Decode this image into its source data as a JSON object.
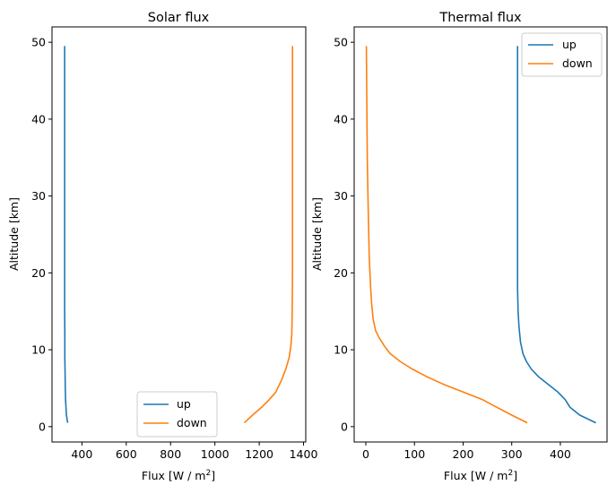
{
  "chart_data": [
    {
      "type": "line",
      "title": "Solar flux",
      "xlabel": "Flux [W / m",
      "xlabel_sup": "2",
      "xlabel_tail": "]",
      "ylabel": "Altitude [km]",
      "xlim": [
        265,
        1410
      ],
      "ylim": [
        -2,
        52
      ],
      "xticks": [
        400,
        600,
        800,
        1000,
        1200,
        1400
      ],
      "yticks": [
        0,
        10,
        20,
        30,
        40,
        50
      ],
      "legend_position": "lower center",
      "series": [
        {
          "name": "up",
          "color": "#1f77b4",
          "x": [
            336,
            333,
            330,
            328,
            326,
            325,
            324,
            323,
            323,
            322,
            322,
            322,
            322,
            322,
            322,
            322,
            322
          ],
          "y": [
            0.5,
            1,
            1.5,
            2.5,
            3.5,
            5,
            7,
            9,
            12,
            15,
            20,
            25,
            30,
            35,
            40,
            45,
            49.5
          ]
        },
        {
          "name": "down",
          "color": "#ff7f0e",
          "x": [
            1133,
            1170,
            1210,
            1245,
            1275,
            1300,
            1320,
            1335,
            1343,
            1347,
            1349,
            1350,
            1350,
            1350,
            1350,
            1350
          ],
          "y": [
            0.5,
            1.5,
            2.5,
            3.5,
            4.5,
            6,
            7.5,
            9,
            10.5,
            12,
            15,
            20,
            25,
            30,
            40,
            49.5
          ]
        }
      ]
    },
    {
      "type": "line",
      "title": "Thermal flux",
      "xlabel": "Flux [W / m",
      "xlabel_sup": "2",
      "xlabel_tail": "]",
      "ylabel": "Altitude [km]",
      "xlim": [
        -24,
        496
      ],
      "ylim": [
        -2,
        52
      ],
      "xticks": [
        0,
        100,
        200,
        300,
        400
      ],
      "yticks": [
        0,
        10,
        20,
        30,
        40,
        50
      ],
      "legend_position": "upper right",
      "series": [
        {
          "name": "up",
          "color": "#1f77b4",
          "x": [
            473,
            440,
            420,
            410,
            395,
            375,
            355,
            340,
            330,
            323,
            318,
            315,
            313,
            312,
            312,
            312,
            312,
            312,
            312
          ],
          "y": [
            0.5,
            1.5,
            2.5,
            3.5,
            4.5,
            5.5,
            6.5,
            7.5,
            8.5,
            9.5,
            11,
            13,
            15,
            18,
            22,
            30,
            40,
            45,
            49.5
          ]
        },
        {
          "name": "down",
          "color": "#ff7f0e",
          "x": [
            332,
            300,
            270,
            240,
            200,
            160,
            125,
            95,
            70,
            50,
            38,
            28,
            20,
            15,
            12,
            10,
            7,
            5,
            3,
            2,
            1
          ],
          "y": [
            0.5,
            1.5,
            2.5,
            3.5,
            4.5,
            5.5,
            6.5,
            7.5,
            8.5,
            9.5,
            10.5,
            11.5,
            12.5,
            14,
            16,
            18,
            22,
            28,
            35,
            42,
            49.5
          ]
        }
      ]
    }
  ]
}
